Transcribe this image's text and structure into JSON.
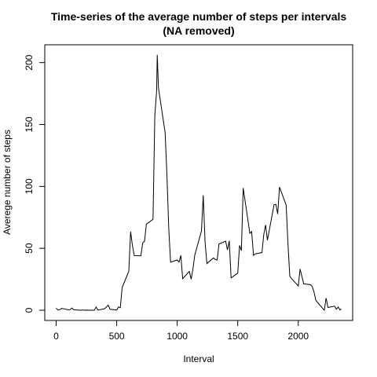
{
  "chart_data": {
    "type": "line",
    "title": [
      "Time-series of the average number of steps per intervals",
      "(NA removed)"
    ],
    "x_label": "Interval",
    "y_label": "Averege number of steps",
    "x": [
      0,
      15,
      30,
      45,
      100,
      115,
      130,
      145,
      200,
      215,
      230,
      245,
      300,
      315,
      330,
      345,
      400,
      415,
      430,
      445,
      500,
      515,
      530,
      545,
      600,
      615,
      630,
      645,
      700,
      715,
      730,
      745,
      800,
      815,
      830,
      835,
      845,
      900,
      915,
      930,
      945,
      1000,
      1015,
      1030,
      1045,
      1100,
      1115,
      1130,
      1145,
      1200,
      1215,
      1230,
      1245,
      1300,
      1315,
      1330,
      1345,
      1400,
      1415,
      1430,
      1445,
      1500,
      1515,
      1530,
      1545,
      1600,
      1615,
      1630,
      1645,
      1700,
      1715,
      1730,
      1745,
      1800,
      1815,
      1830,
      1845,
      1900,
      1915,
      1930,
      1945,
      2000,
      2015,
      2030,
      2045,
      2100,
      2115,
      2130,
      2145,
      2200,
      2215,
      2230,
      2245,
      2300,
      2315,
      2330,
      2345,
      2355
    ],
    "series": [
      {
        "name": "steps",
        "color": "#000000",
        "values": [
          1.7,
          0.1,
          0.5,
          1.5,
          0.4,
          0.5,
          1.8,
          0.4,
          0,
          0.2,
          0,
          0.1,
          0,
          0,
          2.6,
          0.1,
          1.2,
          2.6,
          4.1,
          0.8,
          0.2,
          2.6,
          2.1,
          18.3,
          31.5,
          63.5,
          52.2,
          44.1,
          44,
          54.5,
          55.7,
          69.5,
          73.4,
          157.5,
          177.3,
          206.2,
          179.6,
          143.5,
          109,
          66.2,
          38.8,
          40.6,
          38.9,
          44.3,
          25.5,
          31.4,
          25.1,
          33.4,
          44.6,
          63.9,
          92.8,
          55,
          37.7,
          42.3,
          40.9,
          40.6,
          53.5,
          55.8,
          48.7,
          56.1,
          26.1,
          30,
          52.4,
          48.1,
          98.7,
          62.1,
          63.5,
          44.3,
          45.5,
          46.6,
          61.2,
          68.9,
          56.5,
          85.3,
          85.6,
          77.7,
          99.5,
          84.9,
          53.4,
          27.4,
          25.5,
          19.6,
          33.3,
          27.3,
          21.3,
          20.7,
          19.2,
          14.7,
          8,
          1.6,
          0,
          9.8,
          2.2,
          3.3,
          0.8,
          2.6,
          0.2,
          1.1
        ]
      }
    ],
    "xlim": [
      -94.2,
      2449.2
    ],
    "ylim": [
      -8.25,
      214.4
    ],
    "xticks": [
      0,
      500,
      1000,
      1500,
      2000
    ],
    "yticks": [
      0,
      50,
      100,
      150,
      200
    ]
  }
}
